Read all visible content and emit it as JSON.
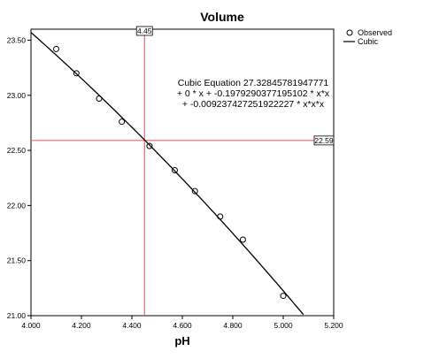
{
  "chart_data": {
    "type": "scatter",
    "title": "Volume",
    "xlabel": "pH",
    "ylabel": "",
    "xlim": [
      4.0,
      5.2
    ],
    "ylim": [
      21.0,
      23.6
    ],
    "x_ticks": [
      4.0,
      4.2,
      4.4,
      4.6,
      4.8,
      5.0,
      5.2
    ],
    "x_tick_labels": [
      "4.000",
      "4.200",
      "4.400",
      "4.600",
      "4.800",
      "5.000",
      "5.200"
    ],
    "y_ticks": [
      21.0,
      21.5,
      22.0,
      22.5,
      23.0,
      23.5
    ],
    "y_tick_labels": [
      "21.00",
      "21.50",
      "22.00",
      "22.50",
      "23.00",
      "23.50"
    ],
    "grid": false,
    "legend_position": "top-right",
    "series": [
      {
        "name": "Observed",
        "marker": "open-circle",
        "points": [
          {
            "x": 4.1,
            "y": 23.42
          },
          {
            "x": 4.18,
            "y": 23.2
          },
          {
            "x": 4.27,
            "y": 22.97
          },
          {
            "x": 4.36,
            "y": 22.76
          },
          {
            "x": 4.47,
            "y": 22.54
          },
          {
            "x": 4.57,
            "y": 22.32
          },
          {
            "x": 4.65,
            "y": 22.13
          },
          {
            "x": 4.75,
            "y": 21.9
          },
          {
            "x": 4.84,
            "y": 21.69
          },
          {
            "x": 5.0,
            "y": 21.18
          }
        ]
      },
      {
        "name": "Cubic",
        "style": "line",
        "fit": {
          "constant": 27.32845781947771,
          "b1": 0,
          "b2": -0.1979290377195102,
          "b3": -0.009237427251922227,
          "x_range": [
            4.0,
            5.08
          ]
        }
      }
    ],
    "annotations": {
      "equation_lines": [
        "Cubic Equation 27.32845781947771",
        "+ 0 * x + -0.1979290377195102 * x*x",
        "+ -0.009237427251922227 * x*x*x"
      ],
      "reference_lines": [
        {
          "axis": "x",
          "value": 4.45,
          "label": "4.45"
        },
        {
          "axis": "y",
          "value": 22.59,
          "label": "22.59"
        }
      ]
    },
    "colors": {
      "reference_line": "#e0505a",
      "fit_line": "#000000",
      "marker": "#000000"
    }
  }
}
